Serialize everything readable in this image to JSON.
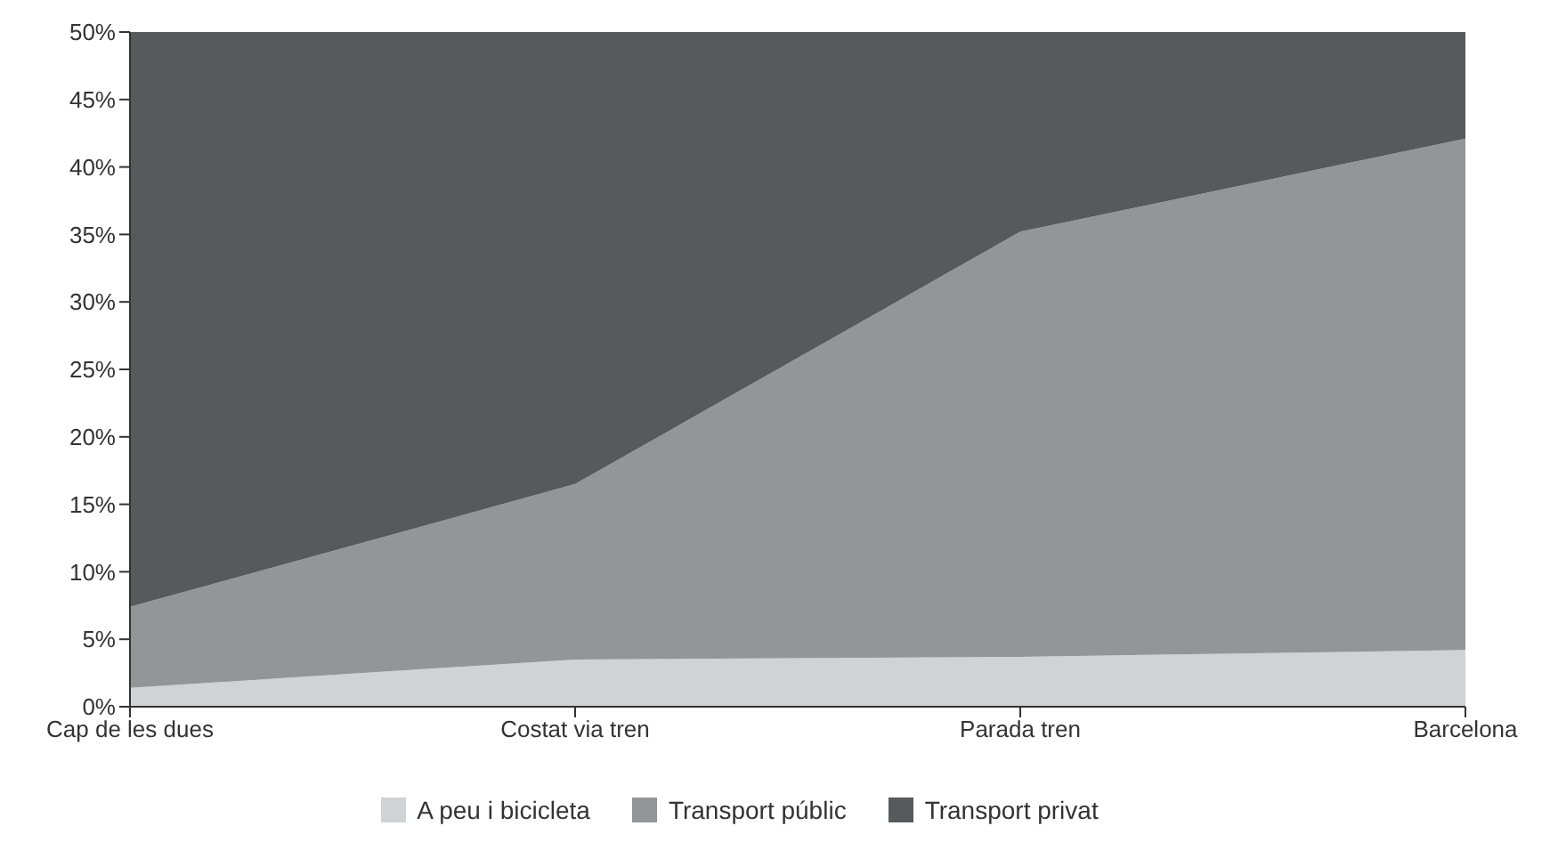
{
  "chart_data": {
    "type": "area",
    "stacked": true,
    "categories": [
      "Cap de les dues",
      "Costat via tren",
      "Parada tren",
      "Barcelona"
    ],
    "series": [
      {
        "name": "A peu i bicicleta",
        "color": "#d1d2d4",
        "values": [
          1.4,
          3.5,
          3.7,
          4.2
        ]
      },
      {
        "name": "Transport públic",
        "color": "#939598",
        "values": [
          6.0,
          13.0,
          31.5,
          37.9
        ]
      },
      {
        "name": "Transport privat",
        "color": "#58595b",
        "values": [
          42.6,
          33.5,
          14.8,
          7.9
        ]
      }
    ],
    "ylim": [
      0,
      50
    ],
    "yticks": [
      {
        "value": 0,
        "label": "0%"
      },
      {
        "value": 5,
        "label": "5%"
      },
      {
        "value": 10,
        "label": "10%"
      },
      {
        "value": 15,
        "label": "15%"
      },
      {
        "value": 20,
        "label": "20%"
      },
      {
        "value": 25,
        "label": "25%"
      },
      {
        "value": 30,
        "label": "30%"
      },
      {
        "value": 35,
        "label": "35%"
      },
      {
        "value": 40,
        "label": "40%"
      },
      {
        "value": 45,
        "label": "45%"
      },
      {
        "value": 50,
        "label": "50%"
      }
    ],
    "grid": false,
    "legend": "bottom"
  }
}
